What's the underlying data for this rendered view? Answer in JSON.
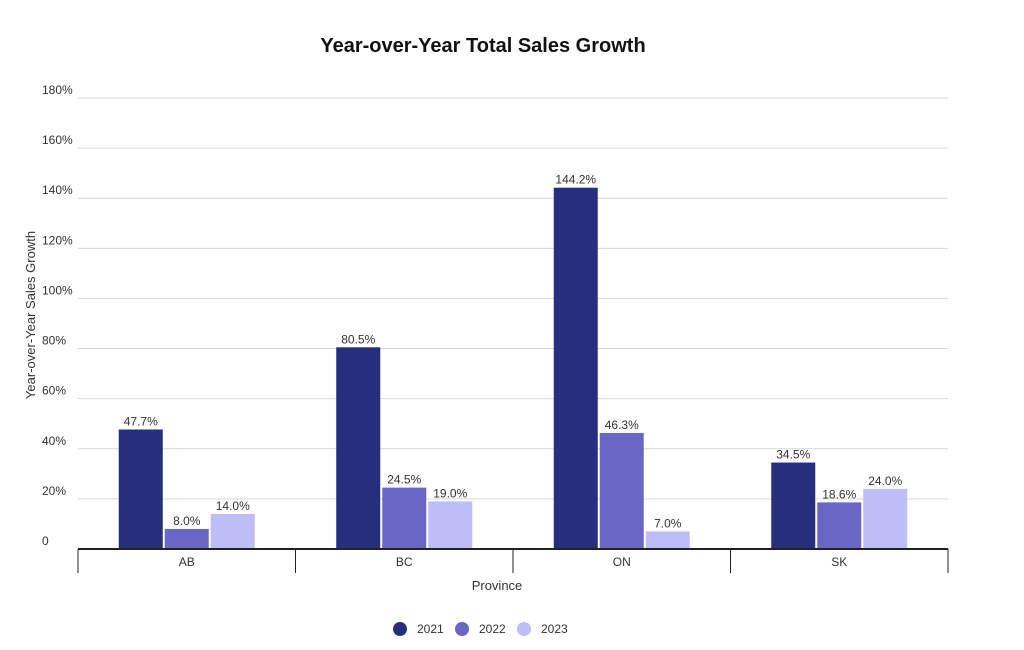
{
  "chart_data": {
    "type": "bar",
    "title": "Year-over-Year Total Sales Growth",
    "xlabel": "Province",
    "ylabel": "Year-over-Year Sales Growth",
    "categories": [
      "AB",
      "BC",
      "ON",
      "SK"
    ],
    "series": [
      {
        "name": "2021",
        "color": "#262f7e",
        "values": [
          47.7,
          80.5,
          144.2,
          34.5
        ],
        "labels": [
          "47.7%",
          "80.5%",
          "144.2%",
          "34.5%"
        ]
      },
      {
        "name": "2022",
        "color": "#6966c6",
        "values": [
          8.0,
          24.5,
          46.3,
          18.6
        ],
        "labels": [
          "8.0%",
          "24.5%",
          "46.3%",
          "18.6%"
        ]
      },
      {
        "name": "2023",
        "color": "#bebdf5",
        "values": [
          14.0,
          19.0,
          7.0,
          24.0
        ],
        "labels": [
          "14.0%",
          "19.0%",
          "7.0%",
          "24.0%"
        ]
      }
    ],
    "ylim": [
      0,
      180
    ],
    "yticks": [
      0,
      20,
      40,
      60,
      80,
      100,
      120,
      140,
      160,
      180
    ],
    "ytick_labels": [
      "0",
      "20%",
      "40%",
      "60%",
      "80%",
      "100%",
      "120%",
      "140%",
      "160%",
      "180%"
    ],
    "grid": true,
    "legend_position": "bottom-center"
  }
}
